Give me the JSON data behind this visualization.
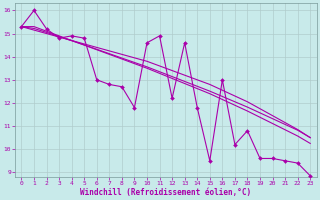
{
  "xlabel": "Windchill (Refroidissement éolien,°C)",
  "bg_color": "#c8eaea",
  "grid_color": "#b0cccc",
  "line_color": "#aa00aa",
  "xlim": [
    -0.5,
    23.5
  ],
  "ylim": [
    8.8,
    16.3
  ],
  "xticks": [
    0,
    1,
    2,
    3,
    4,
    5,
    6,
    7,
    8,
    9,
    10,
    11,
    12,
    13,
    14,
    15,
    16,
    17,
    18,
    19,
    20,
    21,
    22,
    23
  ],
  "yticks": [
    9,
    10,
    11,
    12,
    13,
    14,
    15,
    16
  ],
  "x_data": [
    0,
    1,
    2,
    3,
    4,
    5,
    6,
    7,
    8,
    9,
    10,
    11,
    12,
    13,
    14,
    15,
    16,
    17,
    18,
    19,
    20,
    21,
    22,
    23
  ],
  "y_main": [
    15.3,
    16.0,
    15.2,
    14.8,
    14.9,
    14.8,
    13.0,
    12.8,
    12.7,
    11.8,
    14.6,
    14.9,
    12.2,
    14.6,
    11.8,
    9.5,
    13.0,
    10.2,
    10.8,
    9.6,
    9.6,
    9.5,
    9.4,
    8.85
  ],
  "y_line1": [
    15.3,
    15.15,
    15.0,
    14.85,
    14.7,
    14.55,
    14.4,
    14.25,
    14.1,
    13.95,
    13.8,
    13.6,
    13.4,
    13.2,
    13.0,
    12.8,
    12.55,
    12.3,
    12.05,
    11.75,
    11.45,
    11.15,
    10.85,
    10.5
  ],
  "y_line2": [
    15.3,
    15.22,
    15.05,
    14.87,
    14.69,
    14.51,
    14.32,
    14.13,
    13.94,
    13.75,
    13.56,
    13.35,
    13.14,
    12.93,
    12.72,
    12.51,
    12.28,
    12.05,
    11.82,
    11.57,
    11.32,
    11.07,
    10.82,
    10.5
  ],
  "y_line3": [
    15.3,
    15.3,
    15.1,
    14.9,
    14.7,
    14.5,
    14.3,
    14.1,
    13.9,
    13.7,
    13.5,
    13.28,
    13.06,
    12.84,
    12.62,
    12.4,
    12.15,
    11.9,
    11.65,
    11.38,
    11.11,
    10.84,
    10.57,
    10.25
  ]
}
